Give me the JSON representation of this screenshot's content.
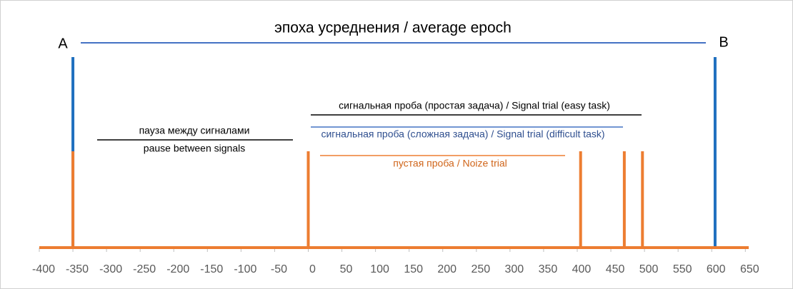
{
  "chart_data": {
    "type": "timeline",
    "title": "эпоха усреднения / average epoch",
    "xlim": [
      -400,
      655
    ],
    "xticks": [
      -400,
      -350,
      -300,
      -250,
      -200,
      -150,
      -100,
      -50,
      0,
      50,
      100,
      150,
      200,
      250,
      300,
      350,
      400,
      450,
      500,
      550,
      600,
      650
    ],
    "series": [
      {
        "color": "#ed7d31",
        "x": [
          -350,
          0,
          405,
          470,
          497
        ]
      },
      {
        "color": "#1f6fbf",
        "x": [
          -350,
          605
        ]
      }
    ],
    "point_labels": [
      "A",
      "B"
    ],
    "annotations": {
      "easy": "сигнальная проба (простая задача) / Signal trial (easy task)",
      "difficult": "сигнальная проба (сложная задача) / Signal trial (difficult task)",
      "noise": "пустая проба / Noize trial",
      "pause_ru": "пауза между сигналами",
      "pause_en": "pause between signals"
    }
  }
}
